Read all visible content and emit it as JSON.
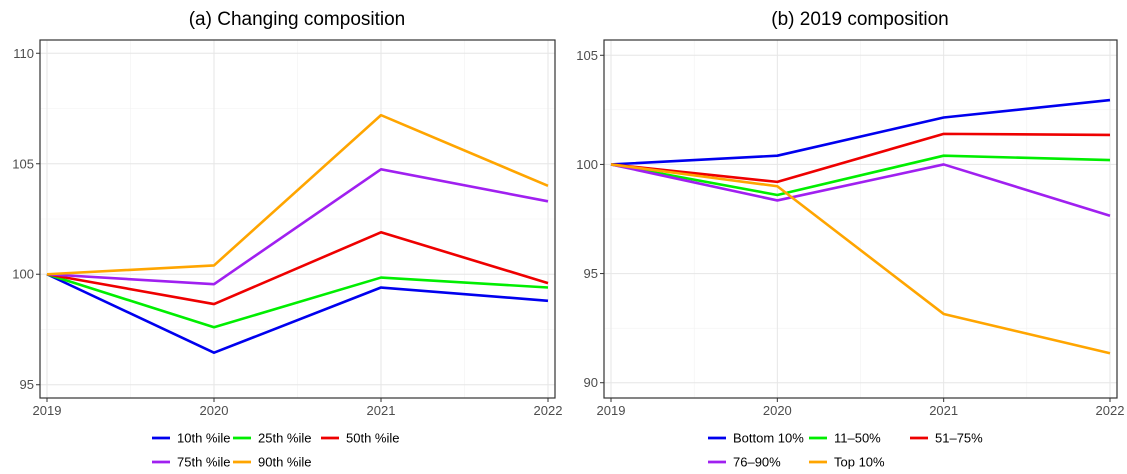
{
  "chart_data": [
    {
      "type": "line",
      "title": "(a) Changing composition",
      "xlabel": "",
      "ylabel": "",
      "x": [
        "2019",
        "2020",
        "2021",
        "2022"
      ],
      "xlim": [
        2019,
        2022
      ],
      "ylim": [
        94.4,
        110.6
      ],
      "yticks": [
        95,
        100,
        105,
        110
      ],
      "grid": true,
      "legend_position": "bottom",
      "series": [
        {
          "name": "10th %ile",
          "color": "#0000ee",
          "values": [
            100,
            96.45,
            99.4,
            98.8
          ]
        },
        {
          "name": "25th %ile",
          "color": "#00ee00",
          "values": [
            100,
            97.6,
            99.85,
            99.4
          ]
        },
        {
          "name": "50th %ile",
          "color": "#ee0000",
          "values": [
            100,
            98.65,
            101.9,
            99.6
          ]
        },
        {
          "name": "75th %ile",
          "color": "#a020f0",
          "values": [
            100,
            99.55,
            104.75,
            103.3
          ]
        },
        {
          "name": "90th %ile",
          "color": "#ffa500",
          "values": [
            100,
            100.4,
            107.2,
            104.0
          ]
        }
      ]
    },
    {
      "type": "line",
      "title": "(b) 2019 composition",
      "xlabel": "",
      "ylabel": "",
      "x": [
        "2019",
        "2020",
        "2021",
        "2022"
      ],
      "xlim": [
        2019,
        2022
      ],
      "ylim": [
        89.3,
        105.7
      ],
      "yticks": [
        90,
        95,
        100,
        105
      ],
      "grid": true,
      "legend_position": "bottom",
      "series": [
        {
          "name": "Bottom 10%",
          "color": "#0000ee",
          "values": [
            100,
            100.4,
            102.15,
            102.95
          ]
        },
        {
          "name": "11–50%",
          "color": "#00ee00",
          "values": [
            100,
            98.6,
            100.4,
            100.2
          ]
        },
        {
          "name": "51–75%",
          "color": "#ee0000",
          "values": [
            100,
            99.2,
            101.4,
            101.35
          ]
        },
        {
          "name": "76–90%",
          "color": "#a020f0",
          "values": [
            100,
            98.35,
            100.0,
            97.65
          ]
        },
        {
          "name": "Top 10%",
          "color": "#ffa500",
          "values": [
            100,
            99.0,
            93.15,
            91.35
          ]
        }
      ]
    }
  ]
}
